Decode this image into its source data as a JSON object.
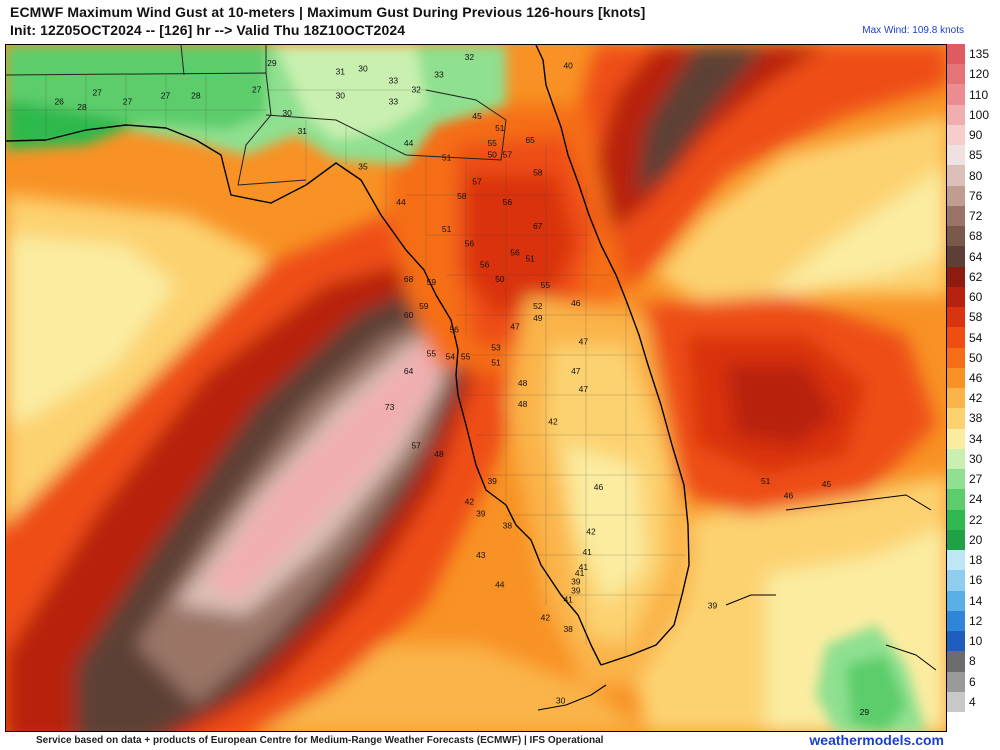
{
  "header": {
    "title": "ECMWF Maximum Wind Gust at 10-meters | Maximum Gust During Previous 126-hours [knots]",
    "subtitle": "Init: 12Z05OCT2024 -- [126] hr --> Valid Thu 18Z10OCT2024",
    "max_wind": "Max Wind: 109.8 knots"
  },
  "legend": {
    "levels": [
      {
        "label": "135",
        "color": "#e05a62"
      },
      {
        "label": "120",
        "color": "#e57479"
      },
      {
        "label": "110",
        "color": "#ea8c90"
      },
      {
        "label": "100",
        "color": "#f1aeb0"
      },
      {
        "label": "90",
        "color": "#f6cccc"
      },
      {
        "label": "85",
        "color": "#eee1df"
      },
      {
        "label": "80",
        "color": "#dcbfb7"
      },
      {
        "label": "76",
        "color": "#c19c90"
      },
      {
        "label": "72",
        "color": "#9a7466"
      },
      {
        "label": "68",
        "color": "#7a584b"
      },
      {
        "label": "64",
        "color": "#5d3f35"
      },
      {
        "label": "62",
        "color": "#8e1b12"
      },
      {
        "label": "60",
        "color": "#b8210f"
      },
      {
        "label": "58",
        "color": "#d9330f"
      },
      {
        "label": "54",
        "color": "#ee4e12"
      },
      {
        "label": "50",
        "color": "#f56e17"
      },
      {
        "label": "46",
        "color": "#f89225"
      },
      {
        "label": "42",
        "color": "#fab44a"
      },
      {
        "label": "38",
        "color": "#fcd270"
      },
      {
        "label": "34",
        "color": "#fbeca0"
      },
      {
        "label": "30",
        "color": "#c9f0b0"
      },
      {
        "label": "27",
        "color": "#8fe090"
      },
      {
        "label": "24",
        "color": "#5ccd6a"
      },
      {
        "label": "22",
        "color": "#2fb94e"
      },
      {
        "label": "20",
        "color": "#1fa245"
      },
      {
        "label": "18",
        "color": "#bfe6f6"
      },
      {
        "label": "16",
        "color": "#8fcdef"
      },
      {
        "label": "14",
        "color": "#5aaee6"
      },
      {
        "label": "12",
        "color": "#2f86d8"
      },
      {
        "label": "10",
        "color": "#1c5fbf"
      },
      {
        "label": "8",
        "color": "#6d6d6d"
      },
      {
        "label": "6",
        "color": "#9a9a9a"
      },
      {
        "label": "4",
        "color": "#c8c8c8"
      }
    ]
  },
  "map": {
    "point_labels": [
      {
        "value": "27",
        "lon": -86.1,
        "lat": 30.75
      },
      {
        "value": "26",
        "lon": -86.6,
        "lat": 30.6
      },
      {
        "value": "28",
        "lon": -86.3,
        "lat": 30.5
      },
      {
        "value": "27",
        "lon": -85.7,
        "lat": 30.6
      },
      {
        "value": "27",
        "lon": -85.2,
        "lat": 30.7
      },
      {
        "value": "28",
        "lon": -84.8,
        "lat": 30.7
      },
      {
        "value": "29",
        "lon": -83.8,
        "lat": 31.25
      },
      {
        "value": "27",
        "lon": -84.0,
        "lat": 30.8
      },
      {
        "value": "30",
        "lon": -83.6,
        "lat": 30.4
      },
      {
        "value": "31",
        "lon": -83.4,
        "lat": 30.1
      },
      {
        "value": "30",
        "lon": -82.9,
        "lat": 30.7
      },
      {
        "value": "31",
        "lon": -82.9,
        "lat": 31.1
      },
      {
        "value": "30",
        "lon": -82.6,
        "lat": 31.15
      },
      {
        "value": "33",
        "lon": -82.2,
        "lat": 30.95
      },
      {
        "value": "33",
        "lon": -81.6,
        "lat": 31.05
      },
      {
        "value": "32",
        "lon": -81.9,
        "lat": 30.8
      },
      {
        "value": "33",
        "lon": -82.2,
        "lat": 30.6
      },
      {
        "value": "32",
        "lon": -81.2,
        "lat": 31.35
      },
      {
        "value": "40",
        "lon": -79.9,
        "lat": 31.2
      },
      {
        "value": "45",
        "lon": -81.1,
        "lat": 30.35
      },
      {
        "value": "51",
        "lon": -80.8,
        "lat": 30.15
      },
      {
        "value": "65",
        "lon": -80.4,
        "lat": 29.95
      },
      {
        "value": "44",
        "lon": -82.0,
        "lat": 29.9
      },
      {
        "value": "55",
        "lon": -80.9,
        "lat": 29.9
      },
      {
        "value": "50",
        "lon": -80.9,
        "lat": 29.7
      },
      {
        "value": "57",
        "lon": -80.7,
        "lat": 29.7
      },
      {
        "value": "51",
        "lon": -81.5,
        "lat": 29.65
      },
      {
        "value": "35",
        "lon": -82.6,
        "lat": 29.5
      },
      {
        "value": "58",
        "lon": -80.3,
        "lat": 29.4
      },
      {
        "value": "57",
        "lon": -81.1,
        "lat": 29.25
      },
      {
        "value": "58",
        "lon": -81.3,
        "lat": 29.0
      },
      {
        "value": "56",
        "lon": -80.7,
        "lat": 28.9
      },
      {
        "value": "44",
        "lon": -82.1,
        "lat": 28.9
      },
      {
        "value": "67",
        "lon": -80.3,
        "lat": 28.5
      },
      {
        "value": "51",
        "lon": -81.5,
        "lat": 28.45
      },
      {
        "value": "56",
        "lon": -81.2,
        "lat": 28.2
      },
      {
        "value": "56",
        "lon": -80.6,
        "lat": 28.05
      },
      {
        "value": "51",
        "lon": -80.4,
        "lat": 27.95
      },
      {
        "value": "56",
        "lon": -81.0,
        "lat": 27.85
      },
      {
        "value": "68",
        "lon": -82.0,
        "lat": 27.6
      },
      {
        "value": "59",
        "lon": -81.7,
        "lat": 27.55
      },
      {
        "value": "50",
        "lon": -80.8,
        "lat": 27.6
      },
      {
        "value": "55",
        "lon": -80.2,
        "lat": 27.5
      },
      {
        "value": "46",
        "lon": -79.8,
        "lat": 27.2
      },
      {
        "value": "52",
        "lon": -80.3,
        "lat": 27.15
      },
      {
        "value": "59",
        "lon": -81.8,
        "lat": 27.15
      },
      {
        "value": "60",
        "lon": -82.0,
        "lat": 27.0
      },
      {
        "value": "49",
        "lon": -80.3,
        "lat": 26.95
      },
      {
        "value": "47",
        "lon": -80.6,
        "lat": 26.8
      },
      {
        "value": "56",
        "lon": -81.4,
        "lat": 26.75
      },
      {
        "value": "47",
        "lon": -79.7,
        "lat": 26.55
      },
      {
        "value": "53",
        "lon": -80.85,
        "lat": 26.45
      },
      {
        "value": "55",
        "lon": -81.7,
        "lat": 26.35
      },
      {
        "value": "54",
        "lon": -81.45,
        "lat": 26.3
      },
      {
        "value": "55",
        "lon": -81.25,
        "lat": 26.3
      },
      {
        "value": "51",
        "lon": -80.85,
        "lat": 26.2
      },
      {
        "value": "64",
        "lon": -82.0,
        "lat": 26.05
      },
      {
        "value": "47",
        "lon": -79.8,
        "lat": 26.05
      },
      {
        "value": "48",
        "lon": -80.5,
        "lat": 25.85
      },
      {
        "value": "47",
        "lon": -79.7,
        "lat": 25.75
      },
      {
        "value": "48",
        "lon": -80.5,
        "lat": 25.5
      },
      {
        "value": "73",
        "lon": -82.25,
        "lat": 25.45
      },
      {
        "value": "42",
        "lon": -80.1,
        "lat": 25.2
      },
      {
        "value": "57",
        "lon": -81.9,
        "lat": 24.8
      },
      {
        "value": "48",
        "lon": -81.6,
        "lat": 24.65
      },
      {
        "value": "39",
        "lon": -80.9,
        "lat": 24.2
      },
      {
        "value": "46",
        "lon": -79.5,
        "lat": 24.1
      },
      {
        "value": "42",
        "lon": -81.2,
        "lat": 23.85
      },
      {
        "value": "39",
        "lon": -81.05,
        "lat": 23.65
      },
      {
        "value": "38",
        "lon": -80.7,
        "lat": 23.45
      },
      {
        "value": "42",
        "lon": -79.6,
        "lat": 23.35
      },
      {
        "value": "43",
        "lon": -81.05,
        "lat": 22.95
      },
      {
        "value": "41",
        "lon": -79.65,
        "lat": 23.0
      },
      {
        "value": "41",
        "lon": -79.7,
        "lat": 22.75
      },
      {
        "value": "41",
        "lon": -79.75,
        "lat": 22.65
      },
      {
        "value": "44",
        "lon": -80.8,
        "lat": 22.45
      },
      {
        "value": "39",
        "lon": -79.8,
        "lat": 22.5
      },
      {
        "value": "39",
        "lon": -79.8,
        "lat": 22.35
      },
      {
        "value": "41",
        "lon": -79.9,
        "lat": 22.2
      },
      {
        "value": "39",
        "lon": -78.0,
        "lat": 22.1
      },
      {
        "value": "42",
        "lon": -80.2,
        "lat": 21.9
      },
      {
        "value": "38",
        "lon": -79.9,
        "lat": 21.7
      },
      {
        "value": "51",
        "lon": -77.3,
        "lat": 24.2
      },
      {
        "value": "45",
        "lon": -76.5,
        "lat": 24.15
      },
      {
        "value": "46",
        "lon": -77.0,
        "lat": 23.95
      },
      {
        "value": "30",
        "lon": -80.0,
        "lat": 20.5
      },
      {
        "value": "29",
        "lon": -76.0,
        "lat": 20.3
      }
    ]
  },
  "footer": {
    "credit": "Service based on data + products of European Centre for Medium-Range Weather Forecasts (ECMWF) | IFS Operational",
    "brand": "weathermodels.com"
  }
}
